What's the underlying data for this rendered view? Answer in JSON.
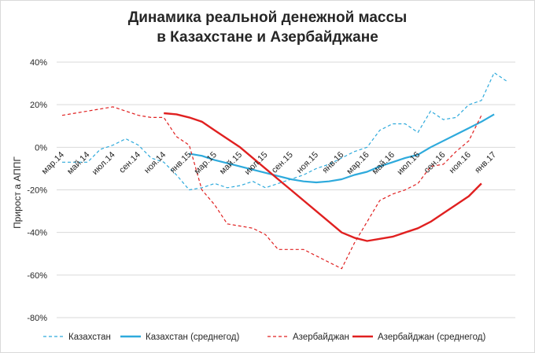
{
  "title_line1": "Динамика реальной денежной массы",
  "title_line2": "в Казахстане и Азербайджане",
  "chart_data": {
    "type": "line",
    "title": "Динамика реальной денежной массы в Казахстане и Азербайджане",
    "ylabel": "Прирост а АППГ",
    "xlabel": "",
    "ylim": [
      -80,
      40
    ],
    "yticks": [
      40,
      20,
      0,
      -20,
      -40,
      -60,
      -80
    ],
    "ytick_labels": [
      "40%",
      "20%",
      "0%",
      "-20%",
      "-40%",
      "-60%",
      "-80%"
    ],
    "x_tick_labels": [
      "мар.14",
      "май.14",
      "июл.14",
      "сен.14",
      "ноя.14",
      "янв.15",
      "мар.15",
      "май.15",
      "июл.15",
      "сен.15",
      "ноя.15",
      "янв.16",
      "мар.16",
      "май.16",
      "июл.16",
      "сен.16",
      "ноя.16",
      "янв.17"
    ],
    "x": [
      "мар.14",
      "апр.14",
      "май.14",
      "июн.14",
      "июл.14",
      "авг.14",
      "сен.14",
      "окт.14",
      "ноя.14",
      "дек.14",
      "янв.15",
      "фев.15",
      "мар.15",
      "апр.15",
      "май.15",
      "июн.15",
      "июл.15",
      "авг.15",
      "сен.15",
      "окт.15",
      "ноя.15",
      "дек.15",
      "янв.16",
      "фев.16",
      "мар.16",
      "апр.16",
      "май.16",
      "июн.16",
      "июл.16",
      "авг.16",
      "сен.16",
      "окт.16",
      "ноя.16",
      "дек.16",
      "янв.17",
      "фев.17"
    ],
    "series": [
      {
        "name": "Казахстан",
        "style": "dashed",
        "color": "#2eaadc",
        "values": [
          -7,
          -7,
          -7,
          -1,
          1,
          4,
          1,
          -5,
          -7,
          -13,
          -20,
          -19,
          -17,
          -19,
          -18,
          -16,
          -19,
          -17,
          -15,
          -13,
          -10,
          -8,
          -5,
          -2,
          0,
          8,
          11,
          11,
          7,
          17,
          13,
          14,
          20,
          22,
          35,
          31
        ]
      },
      {
        "name": "Казахстан (среднегод)",
        "style": "solid",
        "color": "#2eaadc",
        "values": [
          null,
          null,
          null,
          null,
          null,
          null,
          null,
          null,
          null,
          null,
          -3,
          -4,
          -6,
          -7.5,
          -9,
          -10.5,
          -12,
          -13.5,
          -15,
          -16,
          -16.5,
          -16,
          -15,
          -13,
          -11.5,
          -9,
          -7,
          -5,
          -3.5,
          0,
          3,
          6,
          9,
          12,
          15.5,
          null
        ]
      },
      {
        "name": "Азербайджан",
        "style": "dashed",
        "color": "#e02020",
        "values": [
          15,
          16,
          17,
          18,
          19,
          17,
          15,
          14,
          14,
          5,
          1,
          -20,
          -27,
          -36,
          -37,
          -38,
          -41,
          -48,
          -48,
          -48,
          -51,
          -54,
          -57,
          -45,
          -35,
          -25,
          -22,
          -20,
          -17,
          -9,
          -8,
          -2,
          3,
          15,
          null,
          null
        ]
      },
      {
        "name": "Азербайджан (среднегод)",
        "style": "solid",
        "color": "#e02020",
        "values": [
          null,
          null,
          null,
          null,
          null,
          null,
          null,
          null,
          16,
          15.5,
          14,
          12,
          8,
          4,
          0,
          -5,
          -10,
          -15,
          -20,
          -25,
          -30,
          -35,
          -40,
          -42.5,
          -44,
          -43,
          -42,
          -40,
          -38,
          -35,
          -31,
          -27,
          -23,
          -17,
          null,
          null
        ]
      }
    ],
    "grid": true,
    "legend_position": "bottom"
  }
}
